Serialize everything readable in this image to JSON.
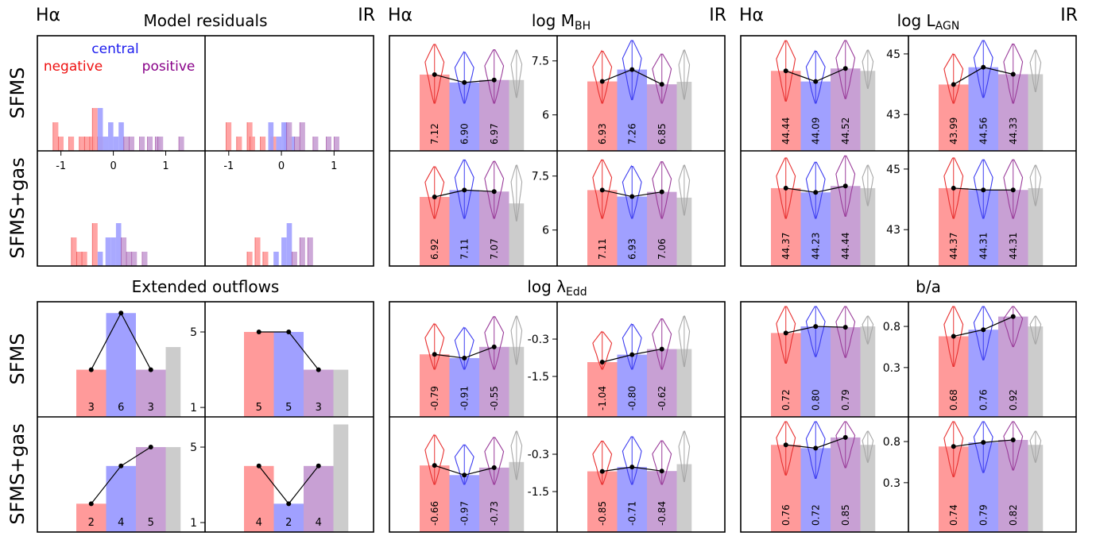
{
  "colors": {
    "neg": "#ff9a9a",
    "cen": "#a0a0ff",
    "pos": "#c8a0d4",
    "gray": "#cccccc",
    "neg_line": "#e83030",
    "cen_line": "#3c3cf0",
    "pos_line": "#9a3c9a",
    "gray_line": "#a8a8a8"
  },
  "labels": {
    "ha": "Hα",
    "ir": "IR",
    "sfms": "SFMS",
    "sfms_gas": "SFMS+gas",
    "negative": "negative",
    "central": "central",
    "positive": "positive"
  },
  "chart_data": [
    {
      "type": "histogram",
      "title": "Model residuals",
      "xticks": [
        -1,
        0,
        1
      ],
      "legend": [
        "negative",
        "central",
        "positive"
      ],
      "panels": [
        {
          "row": "SFMS",
          "col": "Hα",
          "neg": [
            [
              -1.1,
              2
            ],
            [
              -1.0,
              1
            ],
            [
              -0.8,
              1
            ],
            [
              -0.6,
              1
            ],
            [
              -0.5,
              1
            ],
            [
              -0.4,
              1
            ],
            [
              -0.35,
              3
            ],
            [
              -0.25,
              1
            ]
          ],
          "cen": [
            [
              -0.25,
              3
            ],
            [
              -0.15,
              1
            ],
            [
              -0.05,
              2
            ],
            [
              0.05,
              1
            ],
            [
              0.15,
              2
            ]
          ],
          "pos": [
            [
              0.25,
              1
            ],
            [
              0.35,
              1
            ],
            [
              0.55,
              1
            ],
            [
              0.7,
              1
            ],
            [
              0.85,
              1
            ],
            [
              0.9,
              1
            ],
            [
              1.3,
              1
            ]
          ]
        },
        {
          "row": "SFMS",
          "col": "IR",
          "neg": [
            [
              -1.0,
              2
            ],
            [
              -0.8,
              1
            ],
            [
              -0.6,
              2
            ],
            [
              -0.55,
              1
            ],
            [
              -0.35,
              1
            ],
            [
              -0.15,
              1
            ]
          ],
          "cen": [
            [
              -0.2,
              2
            ],
            [
              -0.05,
              1
            ],
            [
              0.05,
              2
            ],
            [
              0.1,
              2
            ],
            [
              0.2,
              1
            ]
          ],
          "pos": [
            [
              0.15,
              2
            ],
            [
              0.3,
              1
            ],
            [
              0.4,
              2
            ],
            [
              0.65,
              1
            ],
            [
              0.9,
              1
            ],
            [
              1.05,
              1
            ]
          ]
        },
        {
          "row": "SFMS+gas",
          "col": "Hα",
          "neg": [
            [
              -0.75,
              2
            ],
            [
              -0.65,
              1
            ],
            [
              -0.55,
              1
            ],
            [
              -0.35,
              3
            ]
          ],
          "cen": [
            [
              -0.25,
              1
            ],
            [
              -0.1,
              2
            ],
            [
              0.0,
              2
            ],
            [
              0.1,
              3
            ]
          ],
          "pos": [
            [
              0.2,
              2
            ],
            [
              0.3,
              1
            ],
            [
              0.4,
              1
            ],
            [
              0.6,
              1
            ]
          ]
        },
        {
          "row": "SFMS+gas",
          "col": "IR",
          "neg": [
            [
              -0.6,
              1
            ],
            [
              -0.45,
              2
            ],
            [
              -0.3,
              1
            ]
          ],
          "cen": [
            [
              -0.1,
              1
            ],
            [
              0.05,
              2
            ],
            [
              0.15,
              3
            ]
          ],
          "pos": [
            [
              0.25,
              1
            ],
            [
              0.4,
              2
            ],
            [
              0.55,
              2
            ]
          ]
        }
      ]
    },
    {
      "type": "bar",
      "title": "Extended outflows",
      "panels": [
        {
          "row": "SFMS",
          "col": "Hα",
          "values": [
            3,
            6,
            3
          ],
          "gray": 4.2
        },
        {
          "row": "SFMS",
          "col": "IR",
          "values": [
            5,
            5,
            3
          ],
          "gray": 3,
          "yticks": [
            1,
            5
          ]
        },
        {
          "row": "SFMS+gas",
          "col": "Hα",
          "values": [
            2,
            4,
            5
          ],
          "gray": 5
        },
        {
          "row": "SFMS+gas",
          "col": "IR",
          "values": [
            4,
            2,
            4
          ],
          "gray": 6.2,
          "yticks": [
            1,
            5
          ]
        }
      ]
    },
    {
      "type": "bar-violin",
      "title": "log M_BH",
      "ylim": [
        5.0,
        8.2
      ],
      "yticks": [
        6.0,
        7.5
      ],
      "panels": [
        {
          "row": "SFMS",
          "col": "Hα",
          "values": [
            7.12,
            6.9,
            6.97
          ],
          "gray": 6.97,
          "labels": [
            "7.12",
            "6.90",
            "6.97"
          ]
        },
        {
          "row": "SFMS",
          "col": "IR",
          "values": [
            6.93,
            7.26,
            6.85
          ],
          "gray": 6.92,
          "labels": [
            "6.93",
            "7.26",
            "6.85"
          ]
        },
        {
          "row": "SFMS+gas",
          "col": "Hα",
          "values": [
            6.92,
            7.11,
            7.07
          ],
          "gray": 6.74,
          "labels": [
            "6.92",
            "7.11",
            "7.07"
          ]
        },
        {
          "row": "SFMS+gas",
          "col": "IR",
          "values": [
            7.11,
            6.93,
            7.06
          ],
          "gray": 6.9,
          "labels": [
            "7.11",
            "6.93",
            "7.06"
          ]
        }
      ]
    },
    {
      "type": "bar-violin",
      "title": "log L_AGN",
      "ylim": [
        41.8,
        45.6
      ],
      "yticks": [
        43,
        45
      ],
      "panels": [
        {
          "row": "SFMS",
          "col": "Hα",
          "values": [
            44.44,
            44.09,
            44.52
          ],
          "gray": 44.44,
          "labels": [
            "44.44",
            "44.09",
            "44.52"
          ]
        },
        {
          "row": "SFMS",
          "col": "IR",
          "values": [
            43.99,
            44.56,
            44.33
          ],
          "gray": 44.33,
          "labels": [
            "43.99",
            "44.56",
            "44.33"
          ]
        },
        {
          "row": "SFMS+gas",
          "col": "Hα",
          "values": [
            44.37,
            44.23,
            44.44
          ],
          "gray": 44.37,
          "labels": [
            "44.37",
            "44.23",
            "44.44"
          ]
        },
        {
          "row": "SFMS+gas",
          "col": "IR",
          "values": [
            44.37,
            44.31,
            44.31
          ],
          "gray": 44.37,
          "labels": [
            "44.37",
            "44.31",
            "44.31"
          ]
        }
      ]
    },
    {
      "type": "bar-violin",
      "title": "log λ_Edd",
      "ylim": [
        -2.8,
        0.9
      ],
      "yticks": [
        -1.5,
        -0.3
      ],
      "panels": [
        {
          "row": "SFMS",
          "col": "Hα",
          "values": [
            -0.79,
            -0.91,
            -0.55
          ],
          "gray": -0.55,
          "labels": [
            "-0.79",
            "-0.91",
            "-0.55"
          ]
        },
        {
          "row": "SFMS",
          "col": "IR",
          "values": [
            -1.04,
            -0.8,
            -0.62
          ],
          "gray": -0.62,
          "labels": [
            "-1.04",
            "-0.80",
            "-0.62"
          ]
        },
        {
          "row": "SFMS+gas",
          "col": "Hα",
          "values": [
            -0.66,
            -0.97,
            -0.73
          ],
          "gray": -0.55,
          "labels": [
            "-0.66",
            "-0.97",
            "-0.73"
          ]
        },
        {
          "row": "SFMS+gas",
          "col": "IR",
          "values": [
            -0.85,
            -0.71,
            -0.84
          ],
          "gray": -0.62,
          "labels": [
            "-0.85",
            "-0.71",
            "-0.84"
          ]
        }
      ]
    },
    {
      "type": "bar-violin",
      "title": "b/a",
      "ylim": [
        -0.3,
        1.1
      ],
      "yticks": [
        0.3,
        0.8
      ],
      "panels": [
        {
          "row": "SFMS",
          "col": "Hα",
          "values": [
            0.72,
            0.8,
            0.79
          ],
          "gray": 0.8,
          "labels": [
            "0.72",
            "0.80",
            "0.79"
          ]
        },
        {
          "row": "SFMS",
          "col": "IR",
          "values": [
            0.68,
            0.76,
            0.92
          ],
          "gray": 0.8,
          "labels": [
            "0.68",
            "0.76",
            "0.92"
          ]
        },
        {
          "row": "SFMS+gas",
          "col": "Hα",
          "values": [
            0.76,
            0.72,
            0.85
          ],
          "gray": 0.76,
          "labels": [
            "0.76",
            "0.72",
            "0.85"
          ]
        },
        {
          "row": "SFMS+gas",
          "col": "IR",
          "values": [
            0.74,
            0.79,
            0.82
          ],
          "gray": 0.76,
          "labels": [
            "0.74",
            "0.79",
            "0.82"
          ]
        }
      ]
    }
  ]
}
